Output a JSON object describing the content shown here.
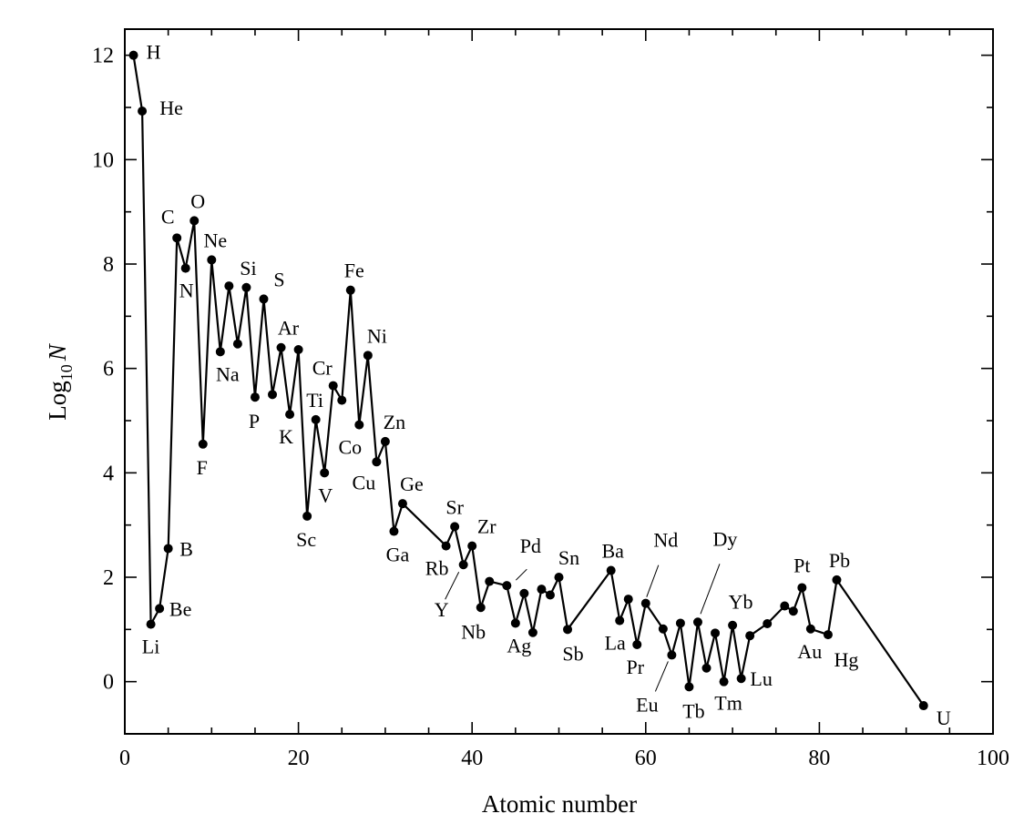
{
  "chart_data": {
    "type": "line",
    "title": "",
    "xlabel": "Atomic number",
    "ylabel_main": "Log",
    "ylabel_sub": "10",
    "ylabel_italic": "N",
    "xlim": [
      0,
      100
    ],
    "ylim": [
      -1,
      12.5
    ],
    "xticks": [
      0,
      20,
      40,
      60,
      80,
      100
    ],
    "yticks": [
      0,
      2,
      4,
      6,
      8,
      10,
      12
    ],
    "grid": false,
    "series": [
      {
        "points": [
          {
            "x": 1,
            "y": 12.0,
            "label": "H"
          },
          {
            "x": 2,
            "y": 10.93,
            "label": "He"
          },
          {
            "x": 3,
            "y": 1.1,
            "label": "Li"
          },
          {
            "x": 4,
            "y": 1.4,
            "label": "Be"
          },
          {
            "x": 5,
            "y": 2.55,
            "label": "B"
          },
          {
            "x": 6,
            "y": 8.5,
            "label": "C"
          },
          {
            "x": 7,
            "y": 7.92,
            "label": "N"
          },
          {
            "x": 8,
            "y": 8.83,
            "label": "O"
          },
          {
            "x": 9,
            "y": 4.55,
            "label": "F"
          },
          {
            "x": 10,
            "y": 8.08,
            "label": "Ne"
          },
          {
            "x": 11,
            "y": 6.32,
            "label": "Na"
          },
          {
            "x": 12,
            "y": 7.58,
            "label": ""
          },
          {
            "x": 13,
            "y": 6.47,
            "label": ""
          },
          {
            "x": 14,
            "y": 7.55,
            "label": "Si"
          },
          {
            "x": 15,
            "y": 5.45,
            "label": "P"
          },
          {
            "x": 16,
            "y": 7.33,
            "label": "S"
          },
          {
            "x": 17,
            "y": 5.5,
            "label": ""
          },
          {
            "x": 18,
            "y": 6.4,
            "label": "Ar"
          },
          {
            "x": 19,
            "y": 5.12,
            "label": "K"
          },
          {
            "x": 20,
            "y": 6.36,
            "label": ""
          },
          {
            "x": 21,
            "y": 3.17,
            "label": "Sc"
          },
          {
            "x": 22,
            "y": 5.02,
            "label": "Ti"
          },
          {
            "x": 23,
            "y": 4.0,
            "label": "V"
          },
          {
            "x": 24,
            "y": 5.67,
            "label": "Cr"
          },
          {
            "x": 25,
            "y": 5.39,
            "label": ""
          },
          {
            "x": 26,
            "y": 7.5,
            "label": "Fe"
          },
          {
            "x": 27,
            "y": 4.92,
            "label": "Co"
          },
          {
            "x": 28,
            "y": 6.25,
            "label": "Ni"
          },
          {
            "x": 29,
            "y": 4.21,
            "label": "Cu"
          },
          {
            "x": 30,
            "y": 4.6,
            "label": "Zn"
          },
          {
            "x": 31,
            "y": 2.88,
            "label": "Ga"
          },
          {
            "x": 32,
            "y": 3.41,
            "label": "Ge"
          },
          {
            "x": 37,
            "y": 2.6,
            "label": "Rb"
          },
          {
            "x": 38,
            "y": 2.97,
            "label": "Sr"
          },
          {
            "x": 39,
            "y": 2.24,
            "label": "Y"
          },
          {
            "x": 40,
            "y": 2.6,
            "label": "Zr"
          },
          {
            "x": 41,
            "y": 1.42,
            "label": "Nb"
          },
          {
            "x": 42,
            "y": 1.92,
            "label": ""
          },
          {
            "x": 44,
            "y": 1.84,
            "label": "Pd"
          },
          {
            "x": 45,
            "y": 1.12,
            "label": "Ag"
          },
          {
            "x": 46,
            "y": 1.69,
            "label": ""
          },
          {
            "x": 47,
            "y": 0.94,
            "label": ""
          },
          {
            "x": 48,
            "y": 1.77,
            "label": ""
          },
          {
            "x": 49,
            "y": 1.66,
            "label": ""
          },
          {
            "x": 50,
            "y": 2.0,
            "label": "Sn"
          },
          {
            "x": 51,
            "y": 1.0,
            "label": "Sb"
          },
          {
            "x": 56,
            "y": 2.13,
            "label": "Ba"
          },
          {
            "x": 57,
            "y": 1.17,
            "label": "La"
          },
          {
            "x": 58,
            "y": 1.58,
            "label": ""
          },
          {
            "x": 59,
            "y": 0.71,
            "label": "Pr"
          },
          {
            "x": 60,
            "y": 1.5,
            "label": "Nd"
          },
          {
            "x": 62,
            "y": 1.01,
            "label": ""
          },
          {
            "x": 63,
            "y": 0.51,
            "label": "Eu"
          },
          {
            "x": 64,
            "y": 1.12,
            "label": ""
          },
          {
            "x": 65,
            "y": -0.1,
            "label": "Tb"
          },
          {
            "x": 66,
            "y": 1.14,
            "label": "Dy"
          },
          {
            "x": 67,
            "y": 0.26,
            "label": ""
          },
          {
            "x": 68,
            "y": 0.93,
            "label": ""
          },
          {
            "x": 69,
            "y": 0.0,
            "label": "Tm"
          },
          {
            "x": 70,
            "y": 1.08,
            "label": "Yb"
          },
          {
            "x": 71,
            "y": 0.06,
            "label": "Lu"
          },
          {
            "x": 72,
            "y": 0.88,
            "label": ""
          },
          {
            "x": 74,
            "y": 1.11,
            "label": ""
          },
          {
            "x": 76,
            "y": 1.45,
            "label": ""
          },
          {
            "x": 77,
            "y": 1.35,
            "label": ""
          },
          {
            "x": 78,
            "y": 1.8,
            "label": "Pt"
          },
          {
            "x": 79,
            "y": 1.01,
            "label": "Au"
          },
          {
            "x": 81,
            "y": 0.9,
            "label": "Hg"
          },
          {
            "x": 82,
            "y": 1.95,
            "label": "Pb"
          },
          {
            "x": 92,
            "y": -0.46,
            "label": "U"
          }
        ]
      }
    ]
  }
}
